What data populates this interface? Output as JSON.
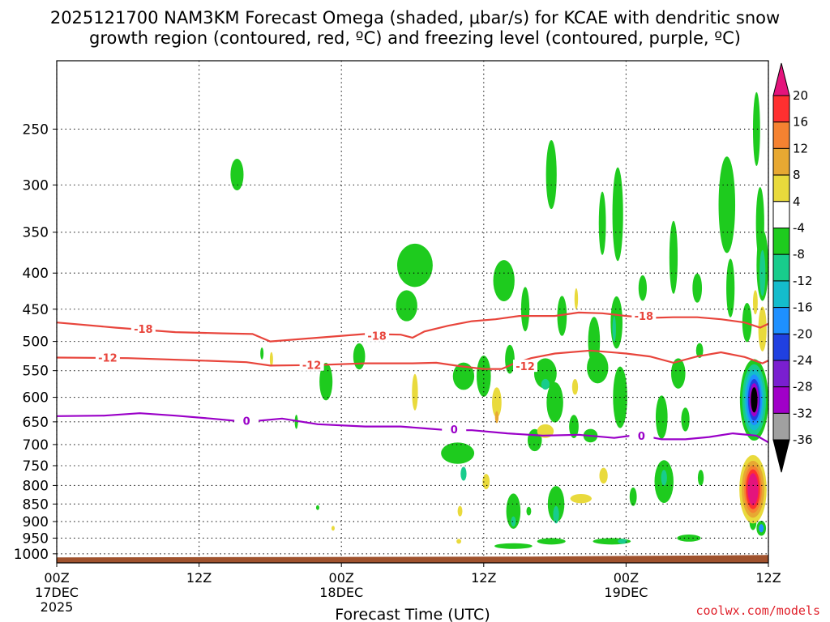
{
  "title": {
    "line1": "2025121700 NAM3KM Forecast Omega (shaded, μbar/s) for KCAE with dendritic snow",
    "line2": "growth region (contoured, red, ºC) and freezing level (contoured, purple, ºC)"
  },
  "credit": "coolwx.com/models",
  "credit_color": "#e0202a",
  "chart_data": {
    "type": "heatmap",
    "xlabel": "Forecast Time (UTC)",
    "x_unit": "hours since 2025-12-17 00Z",
    "xlim": [
      0,
      60
    ],
    "x_ticks": [
      {
        "value": 0,
        "label": "00Z",
        "sub1": "17DEC",
        "sub2": "2025"
      },
      {
        "value": 12,
        "label": "12Z",
        "sub1": "",
        "sub2": ""
      },
      {
        "value": 24,
        "label": "00Z",
        "sub1": "18DEC",
        "sub2": ""
      },
      {
        "value": 36,
        "label": "12Z",
        "sub1": "",
        "sub2": ""
      },
      {
        "value": 48,
        "label": "00Z",
        "sub1": "19DEC",
        "sub2": ""
      },
      {
        "value": 60,
        "label": "12Z",
        "sub1": "",
        "sub2": ""
      }
    ],
    "y_axis": "pressure (hPa), log scale",
    "ylim": [
      1030,
      200
    ],
    "y_ticks": [
      250,
      300,
      350,
      400,
      450,
      500,
      550,
      600,
      650,
      700,
      750,
      800,
      850,
      900,
      950,
      1000
    ],
    "grid": true,
    "ground_color": "#a0522d",
    "ground_surface": [
      [
        0,
        1012
      ],
      [
        10,
        1011
      ],
      [
        25,
        1010
      ],
      [
        40,
        1009
      ],
      [
        52,
        1006
      ],
      [
        60,
        1004
      ]
    ],
    "contours": [
      {
        "level": -18,
        "color": "#e8453c",
        "label": "-18",
        "points": [
          [
            0,
            470
          ],
          [
            5,
            478
          ],
          [
            10,
            485
          ],
          [
            14,
            487
          ],
          [
            16.5,
            488
          ],
          [
            18,
            500
          ],
          [
            22,
            494
          ],
          [
            26,
            488
          ],
          [
            29,
            489
          ],
          [
            30,
            494
          ],
          [
            31,
            484
          ],
          [
            33,
            475
          ],
          [
            35,
            468
          ],
          [
            37,
            465
          ],
          [
            39,
            460
          ],
          [
            42,
            460
          ],
          [
            44,
            455
          ],
          [
            46,
            456
          ],
          [
            48,
            460
          ],
          [
            50,
            463
          ],
          [
            52,
            462
          ],
          [
            54,
            462
          ],
          [
            56,
            465
          ],
          [
            58,
            470
          ],
          [
            59.3,
            478
          ],
          [
            60,
            472
          ]
        ],
        "label_at": [
          [
            7.3,
            480
          ],
          [
            27,
            491
          ],
          [
            49.5,
            460
          ]
        ]
      },
      {
        "level": -12,
        "color": "#e8453c",
        "label": "-12",
        "points": [
          [
            0,
            527
          ],
          [
            6,
            528
          ],
          [
            12,
            532
          ],
          [
            16,
            535
          ],
          [
            18,
            541
          ],
          [
            22,
            540
          ],
          [
            26,
            537
          ],
          [
            30,
            537
          ],
          [
            32,
            536
          ],
          [
            34,
            542
          ],
          [
            36,
            547
          ],
          [
            37.5,
            547
          ],
          [
            38.5,
            538
          ],
          [
            40,
            528
          ],
          [
            42,
            520
          ],
          [
            45,
            515
          ],
          [
            48,
            520
          ],
          [
            50,
            525
          ],
          [
            52,
            536
          ],
          [
            54,
            525
          ],
          [
            56,
            518
          ],
          [
            58,
            526
          ],
          [
            59.5,
            537
          ],
          [
            60,
            532
          ]
        ],
        "label_at": [
          [
            4.3,
            527
          ],
          [
            21.5,
            540
          ],
          [
            39.5,
            542
          ]
        ]
      },
      {
        "level": 0,
        "color": "#9a00c8",
        "label": "0",
        "points": [
          [
            0,
            638
          ],
          [
            4,
            637
          ],
          [
            7,
            632
          ],
          [
            10,
            637
          ],
          [
            13,
            643
          ],
          [
            16,
            650
          ],
          [
            19,
            643
          ],
          [
            22,
            655
          ],
          [
            26,
            660
          ],
          [
            29,
            660
          ],
          [
            31,
            664
          ],
          [
            33,
            668
          ],
          [
            35,
            668
          ],
          [
            38,
            675
          ],
          [
            41,
            680
          ],
          [
            44,
            678
          ],
          [
            47,
            685
          ],
          [
            49,
            678
          ],
          [
            51,
            688
          ],
          [
            53,
            688
          ],
          [
            55,
            683
          ],
          [
            57,
            675
          ],
          [
            59,
            680
          ],
          [
            60,
            695
          ]
        ],
        "label_at": [
          [
            16,
            648
          ],
          [
            33.5,
            666
          ],
          [
            49.3,
            680
          ]
        ]
      }
    ],
    "colorbar": {
      "levels": [
        {
          "from": 20,
          "to": 24,
          "color": "#e4147c"
        },
        {
          "from": 16,
          "to": 20,
          "color": "#ff3030"
        },
        {
          "from": 12,
          "to": 16,
          "color": "#f58231"
        },
        {
          "from": 8,
          "to": 12,
          "color": "#e7a832"
        },
        {
          "from": 4,
          "to": 8,
          "color": "#e9da3c"
        },
        {
          "from": -4,
          "to": 4,
          "color": "#ffffff"
        },
        {
          "from": -8,
          "to": -4,
          "color": "#1ecb1e"
        },
        {
          "from": -12,
          "to": -8,
          "color": "#18cc8c"
        },
        {
          "from": -16,
          "to": -12,
          "color": "#14bccc"
        },
        {
          "from": -20,
          "to": -16,
          "color": "#1e90ff"
        },
        {
          "from": -24,
          "to": -20,
          "color": "#2040e0"
        },
        {
          "from": -28,
          "to": -24,
          "color": "#7a1fd0"
        },
        {
          "from": -32,
          "to": -28,
          "color": "#a000c8"
        },
        {
          "from": -36,
          "to": -32,
          "color": "#a0a0a0"
        },
        {
          "from": -40,
          "to": -36,
          "color": "#000000"
        }
      ],
      "tick_labels": [
        "20",
        "16",
        "12",
        "8",
        "4",
        "-4",
        "-8",
        "-12",
        "-16",
        "-20",
        "-24",
        "-28",
        "-32",
        "-36"
      ]
    },
    "omega_blobs": [
      {
        "t": 15.2,
        "p": 290,
        "w": 0.55,
        "h": 30,
        "value": -6
      },
      {
        "t": 30.2,
        "p": 390,
        "w": 1.5,
        "h": 55,
        "value": -6
      },
      {
        "t": 29.5,
        "p": 445,
        "w": 0.9,
        "h": 45,
        "value": -6
      },
      {
        "t": 25.5,
        "p": 525,
        "w": 0.5,
        "h": 45,
        "value": -6
      },
      {
        "t": 22.7,
        "p": 570,
        "w": 0.55,
        "h": 70,
        "value": -6
      },
      {
        "t": 17.3,
        "p": 520,
        "w": 0.1,
        "h": 20,
        "value": -5
      },
      {
        "t": 20.2,
        "p": 650,
        "w": 0.12,
        "h": 30,
        "value": -5
      },
      {
        "t": 22.0,
        "p": 860,
        "w": 0.12,
        "h": 12,
        "value": -5
      },
      {
        "t": 18.1,
        "p": 530,
        "w": 0.1,
        "h": 25,
        "value": 5
      },
      {
        "t": 30.2,
        "p": 590,
        "w": 0.25,
        "h": 70,
        "value": 5
      },
      {
        "t": 23.3,
        "p": 920,
        "w": 0.12,
        "h": 6,
        "value": 5
      },
      {
        "t": 34.3,
        "p": 560,
        "w": 0.9,
        "h": 50,
        "value": -6
      },
      {
        "t": 33.8,
        "p": 720,
        "w": 1.4,
        "h": 50,
        "value": -6
      },
      {
        "t": 34.3,
        "p": 770,
        "w": 0.25,
        "h": 35,
        "value": -10
      },
      {
        "t": 36.0,
        "p": 560,
        "w": 0.6,
        "h": 75,
        "value": -6
      },
      {
        "t": 36.2,
        "p": 790,
        "w": 0.3,
        "h": 40,
        "value": 5
      },
      {
        "t": 34.0,
        "p": 870,
        "w": 0.2,
        "h": 30,
        "value": 5
      },
      {
        "t": 33.9,
        "p": 960,
        "w": 0.2,
        "h": 12,
        "value": 5
      },
      {
        "t": 37.1,
        "p": 610,
        "w": 0.4,
        "h": 60,
        "value": 5
      },
      {
        "t": 37.1,
        "p": 640,
        "w": 0.15,
        "h": 25,
        "value": 10
      },
      {
        "t": 37.7,
        "p": 410,
        "w": 0.9,
        "h": 55,
        "value": -6
      },
      {
        "t": 38.2,
        "p": 530,
        "w": 0.4,
        "h": 50,
        "value": -6
      },
      {
        "t": 38.5,
        "p": 870,
        "w": 0.6,
        "h": 100,
        "value": -6
      },
      {
        "t": 38.5,
        "p": 900,
        "w": 0.2,
        "h": 30,
        "value": -10
      },
      {
        "t": 38.5,
        "p": 975,
        "w": 1.6,
        "h": 18,
        "value": -6
      },
      {
        "t": 39.5,
        "p": 450,
        "w": 0.35,
        "h": 65,
        "value": -6
      },
      {
        "t": 41.2,
        "p": 555,
        "w": 0.95,
        "h": 55,
        "value": -6
      },
      {
        "t": 41.2,
        "p": 575,
        "w": 0.35,
        "h": 20,
        "value": -10
      },
      {
        "t": 40.3,
        "p": 690,
        "w": 0.6,
        "h": 50,
        "value": -6
      },
      {
        "t": 41.2,
        "p": 670,
        "w": 0.7,
        "h": 30,
        "value": 5
      },
      {
        "t": 39.8,
        "p": 870,
        "w": 0.2,
        "h": 25,
        "value": -6
      },
      {
        "t": 42.0,
        "p": 610,
        "w": 0.7,
        "h": 80,
        "value": -6
      },
      {
        "t": 42.6,
        "p": 460,
        "w": 0.4,
        "h": 60,
        "value": -6
      },
      {
        "t": 41.7,
        "p": 290,
        "w": 0.45,
        "h": 65,
        "value": -6
      },
      {
        "t": 42.1,
        "p": 850,
        "w": 0.7,
        "h": 100,
        "value": -6
      },
      {
        "t": 42.1,
        "p": 880,
        "w": 0.25,
        "h": 50,
        "value": -11
      },
      {
        "t": 41.7,
        "p": 960,
        "w": 1.2,
        "h": 20,
        "value": -6
      },
      {
        "t": 43.6,
        "p": 660,
        "w": 0.4,
        "h": 50,
        "value": -6
      },
      {
        "t": 43.7,
        "p": 580,
        "w": 0.25,
        "h": 30,
        "value": 5
      },
      {
        "t": 43.8,
        "p": 435,
        "w": 0.15,
        "h": 30,
        "value": 5
      },
      {
        "t": 44.2,
        "p": 835,
        "w": 0.9,
        "h": 25,
        "value": 5
      },
      {
        "t": 45.3,
        "p": 500,
        "w": 0.5,
        "h": 80,
        "value": -6
      },
      {
        "t": 45.6,
        "p": 545,
        "w": 0.9,
        "h": 55,
        "value": -6
      },
      {
        "t": 45.0,
        "p": 680,
        "w": 0.6,
        "h": 30,
        "value": -6
      },
      {
        "t": 46.1,
        "p": 775,
        "w": 0.35,
        "h": 40,
        "value": 5
      },
      {
        "t": 46.0,
        "p": 340,
        "w": 0.3,
        "h": 70,
        "value": -6
      },
      {
        "t": 47.3,
        "p": 330,
        "w": 0.45,
        "h": 100,
        "value": -6
      },
      {
        "t": 47.2,
        "p": 470,
        "w": 0.5,
        "h": 80,
        "value": -6
      },
      {
        "t": 47.5,
        "p": 600,
        "w": 0.6,
        "h": 120,
        "value": -6
      },
      {
        "t": 47.0,
        "p": 480,
        "w": 0.15,
        "h": 40,
        "value": -10
      },
      {
        "t": 46.8,
        "p": 960,
        "w": 1.6,
        "h": 20,
        "value": -6
      },
      {
        "t": 47.7,
        "p": 960,
        "w": 0.4,
        "h": 12,
        "value": -10
      },
      {
        "t": 48.6,
        "p": 830,
        "w": 0.3,
        "h": 50,
        "value": -6
      },
      {
        "t": 49.4,
        "p": 420,
        "w": 0.35,
        "h": 35,
        "value": -6
      },
      {
        "t": 51.0,
        "p": 640,
        "w": 0.5,
        "h": 90,
        "value": -6
      },
      {
        "t": 51.2,
        "p": 790,
        "w": 0.8,
        "h": 110,
        "value": -6
      },
      {
        "t": 51.2,
        "p": 780,
        "w": 0.25,
        "h": 40,
        "value": -11
      },
      {
        "t": 52.0,
        "p": 380,
        "w": 0.35,
        "h": 90,
        "value": -6
      },
      {
        "t": 52.4,
        "p": 555,
        "w": 0.6,
        "h": 55,
        "value": -6
      },
      {
        "t": 53.0,
        "p": 645,
        "w": 0.35,
        "h": 50,
        "value": -6
      },
      {
        "t": 53.3,
        "p": 950,
        "w": 1.0,
        "h": 22,
        "value": -6
      },
      {
        "t": 54.0,
        "p": 420,
        "w": 0.4,
        "h": 40,
        "value": -6
      },
      {
        "t": 54.2,
        "p": 515,
        "w": 0.3,
        "h": 25,
        "value": -6
      },
      {
        "t": 54.3,
        "p": 780,
        "w": 0.25,
        "h": 40,
        "value": -6
      },
      {
        "t": 56.5,
        "p": 320,
        "w": 0.7,
        "h": 100,
        "value": -6
      },
      {
        "t": 56.8,
        "p": 420,
        "w": 0.35,
        "h": 80,
        "value": -6
      },
      {
        "t": 59.0,
        "p": 250,
        "w": 0.3,
        "h": 60,
        "value": -6
      },
      {
        "t": 59.3,
        "p": 340,
        "w": 0.35,
        "h": 80,
        "value": -6
      },
      {
        "t": 59.5,
        "p": 390,
        "w": 0.5,
        "h": 90,
        "value": -6
      },
      {
        "t": 59.5,
        "p": 400,
        "w": 0.25,
        "h": 60,
        "value": -11
      },
      {
        "t": 59.5,
        "p": 480,
        "w": 0.35,
        "h": 70,
        "value": 5
      },
      {
        "t": 58.9,
        "p": 440,
        "w": 0.2,
        "h": 35,
        "value": 5
      },
      {
        "t": 58.2,
        "p": 470,
        "w": 0.4,
        "h": 60,
        "value": -6
      },
      {
        "t": 58.7,
        "p": 900,
        "w": 0.3,
        "h": 50,
        "value": -6
      },
      {
        "t": 59.4,
        "p": 920,
        "w": 0.4,
        "h": 45,
        "value": -6
      },
      {
        "t": 59.4,
        "p": 920,
        "w": 0.2,
        "h": 25,
        "value": -20
      }
    ],
    "omega_cores": [
      {
        "t": 58.8,
        "p": 605,
        "rings": [
          {
            "w": 1.2,
            "h": 160,
            "value": -6
          },
          {
            "w": 1.0,
            "h": 140,
            "value": -10
          },
          {
            "w": 0.82,
            "h": 120,
            "value": -14
          },
          {
            "w": 0.66,
            "h": 100,
            "value": -18
          },
          {
            "w": 0.52,
            "h": 82,
            "value": -22
          },
          {
            "w": 0.4,
            "h": 66,
            "value": -30
          },
          {
            "w": 0.28,
            "h": 50,
            "value": -38
          }
        ]
      },
      {
        "t": 58.7,
        "p": 810,
        "rings": [
          {
            "w": 1.15,
            "h": 180,
            "value": 6
          },
          {
            "w": 0.95,
            "h": 150,
            "value": 10
          },
          {
            "w": 0.75,
            "h": 125,
            "value": 14
          },
          {
            "w": 0.6,
            "h": 105,
            "value": 18
          },
          {
            "w": 0.45,
            "h": 85,
            "value": 22
          }
        ]
      }
    ]
  }
}
